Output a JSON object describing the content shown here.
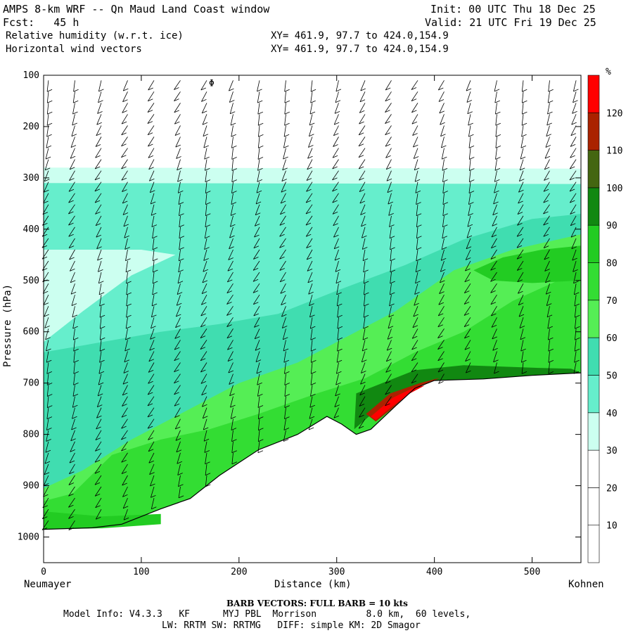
{
  "header": {
    "title": "AMPS 8-km WRF -- Qn Maud Land Coast window",
    "fcst_label": "Fcst:",
    "fcst_value": "45 h",
    "field1": "Relative humidity (w.r.t. ice)",
    "field2": "Horizontal wind vectors",
    "init": "Init: 00 UTC Thu 18 Dec 25",
    "valid": "Valid: 21 UTC Fri 19 Dec 25",
    "xy1": "XY= 461.9, 97.7 to 424.0,154.9",
    "xy2": "XY= 461.9, 97.7 to 424.0,154.9"
  },
  "chart_data": {
    "type": "heatmap",
    "title": "Relative humidity (w.r.t. ice)",
    "xlabel": "Distance (km)",
    "ylabel": "Pressure (hPa)",
    "xlim": [
      0,
      550
    ],
    "ylim": [
      100,
      1050
    ],
    "y_scale": "pressure (inverted)",
    "x_ticks": [
      0,
      100,
      200,
      300,
      400,
      500
    ],
    "y_ticks": [
      100,
      200,
      300,
      400,
      500,
      600,
      700,
      800,
      900,
      1000
    ],
    "x_end_labels": {
      "left": "Neumayer",
      "right": "Kohnen"
    },
    "colorbar": {
      "unit": "%",
      "levels": [
        10,
        20,
        30,
        40,
        50,
        60,
        70,
        80,
        90,
        100,
        110,
        120
      ],
      "colors": [
        "#ffffff",
        "#ffffff",
        "#ffffff",
        "#ccfff0",
        "#66eecc",
        "#40ddb0",
        "#55ee55",
        "#33dd33",
        "#22cc22",
        "#118811",
        "#446611",
        "#aa2200",
        "#ff0000"
      ]
    },
    "terrain_pressure": [
      {
        "x": 0,
        "p": 985
      },
      {
        "x": 50,
        "p": 982
      },
      {
        "x": 80,
        "p": 975
      },
      {
        "x": 120,
        "p": 945
      },
      {
        "x": 150,
        "p": 925
      },
      {
        "x": 180,
        "p": 880
      },
      {
        "x": 220,
        "p": 830
      },
      {
        "x": 260,
        "p": 800
      },
      {
        "x": 290,
        "p": 765
      },
      {
        "x": 305,
        "p": 780
      },
      {
        "x": 320,
        "p": 800
      },
      {
        "x": 335,
        "p": 790
      },
      {
        "x": 360,
        "p": 745
      },
      {
        "x": 380,
        "p": 710
      },
      {
        "x": 400,
        "p": 695
      },
      {
        "x": 450,
        "p": 692
      },
      {
        "x": 500,
        "p": 685
      },
      {
        "x": 550,
        "p": 680
      }
    ],
    "rh_layers": [
      {
        "from_p": 280,
        "to_p": 310,
        "rh": 35
      },
      {
        "from_p": 310,
        "to_p": 440,
        "rh": 45
      },
      {
        "from_p": 440,
        "to_p": 600,
        "rh": 40
      }
    ],
    "barb_note": "BARB VECTORS: FULL BARB = 10 kts",
    "annotation_symbol": "Φ"
  },
  "footer": {
    "barb_note": "BARB VECTORS: FULL BARB = 10 kts",
    "model_line": "Model Info: V4.3.3   KF      MYJ PBL  Morrison         8.0 km,  60 levels,",
    "model_line2": "LW: RRTM SW: RRTMG   DIFF: simple KM: 2D Smagor"
  },
  "colors": {
    "white_band": "#ffffff",
    "pale": "#ccfff0",
    "aqua": "#66eecc",
    "teal": "#40ddb0",
    "green1": "#55ee55",
    "green2": "#33dd33",
    "green3": "#22cc22",
    "darkgreen": "#118811",
    "olive": "#446611",
    "darkred": "#aa2200",
    "red": "#ff0000"
  }
}
